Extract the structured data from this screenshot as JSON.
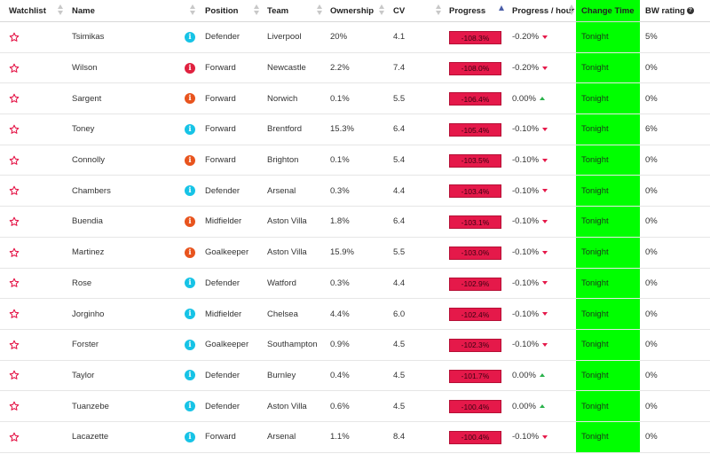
{
  "headers": {
    "watchlist": "Watchlist",
    "name": "Name",
    "position": "Position",
    "team": "Team",
    "ownership": "Ownership",
    "cv": "CV",
    "progress": "Progress",
    "progress_hour": "Progress / hour",
    "change_time": "Change Time",
    "bw_rating": "BW rating"
  },
  "colors": {
    "progress_bg": "#e5194a",
    "change_time_bg": "#00ff00",
    "info_cyan": "#16c3e6",
    "info_orange": "#e8541e",
    "info_red": "#e0213f",
    "star": "#e5194a"
  },
  "rows": [
    {
      "name": "Tsimikas",
      "info_color": "cyan",
      "position": "Defender",
      "team": "Liverpool",
      "ownership": "20%",
      "cv": "4.1",
      "progress": "-108.3%",
      "progress_hour": "-0.20%",
      "trend": "down",
      "change_time": "Tonight",
      "bw_rating": "5%"
    },
    {
      "name": "Wilson",
      "info_color": "red",
      "position": "Forward",
      "team": "Newcastle",
      "ownership": "2.2%",
      "cv": "7.4",
      "progress": "-108.0%",
      "progress_hour": "-0.20%",
      "trend": "down",
      "change_time": "Tonight",
      "bw_rating": "0%"
    },
    {
      "name": "Sargent",
      "info_color": "orange",
      "position": "Forward",
      "team": "Norwich",
      "ownership": "0.1%",
      "cv": "5.5",
      "progress": "-106.4%",
      "progress_hour": "0.00%",
      "trend": "up",
      "change_time": "Tonight",
      "bw_rating": "0%"
    },
    {
      "name": "Toney",
      "info_color": "cyan",
      "position": "Forward",
      "team": "Brentford",
      "ownership": "15.3%",
      "cv": "6.4",
      "progress": "-105.4%",
      "progress_hour": "-0.10%",
      "trend": "down",
      "change_time": "Tonight",
      "bw_rating": "6%"
    },
    {
      "name": "Connolly",
      "info_color": "orange",
      "position": "Forward",
      "team": "Brighton",
      "ownership": "0.1%",
      "cv": "5.4",
      "progress": "-103.5%",
      "progress_hour": "-0.10%",
      "trend": "down",
      "change_time": "Tonight",
      "bw_rating": "0%"
    },
    {
      "name": "Chambers",
      "info_color": "cyan",
      "position": "Defender",
      "team": "Arsenal",
      "ownership": "0.3%",
      "cv": "4.4",
      "progress": "-103.4%",
      "progress_hour": "-0.10%",
      "trend": "down",
      "change_time": "Tonight",
      "bw_rating": "0%"
    },
    {
      "name": "Buendia",
      "info_color": "orange",
      "position": "Midfielder",
      "team": "Aston Villa",
      "ownership": "1.8%",
      "cv": "6.4",
      "progress": "-103.1%",
      "progress_hour": "-0.10%",
      "trend": "down",
      "change_time": "Tonight",
      "bw_rating": "0%"
    },
    {
      "name": "Martinez",
      "info_color": "orange",
      "position": "Goalkeeper",
      "team": "Aston Villa",
      "ownership": "15.9%",
      "cv": "5.5",
      "progress": "-103.0%",
      "progress_hour": "-0.10%",
      "trend": "down",
      "change_time": "Tonight",
      "bw_rating": "0%"
    },
    {
      "name": "Rose",
      "info_color": "cyan",
      "position": "Defender",
      "team": "Watford",
      "ownership": "0.3%",
      "cv": "4.4",
      "progress": "-102.9%",
      "progress_hour": "-0.10%",
      "trend": "down",
      "change_time": "Tonight",
      "bw_rating": "0%"
    },
    {
      "name": "Jorginho",
      "info_color": "cyan",
      "position": "Midfielder",
      "team": "Chelsea",
      "ownership": "4.4%",
      "cv": "6.0",
      "progress": "-102.4%",
      "progress_hour": "-0.10%",
      "trend": "down",
      "change_time": "Tonight",
      "bw_rating": "0%"
    },
    {
      "name": "Forster",
      "info_color": "cyan",
      "position": "Goalkeeper",
      "team": "Southampton",
      "ownership": "0.9%",
      "cv": "4.5",
      "progress": "-102.3%",
      "progress_hour": "-0.10%",
      "trend": "down",
      "change_time": "Tonight",
      "bw_rating": "0%"
    },
    {
      "name": "Taylor",
      "info_color": "cyan",
      "position": "Defender",
      "team": "Burnley",
      "ownership": "0.4%",
      "cv": "4.5",
      "progress": "-101.7%",
      "progress_hour": "0.00%",
      "trend": "up",
      "change_time": "Tonight",
      "bw_rating": "0%"
    },
    {
      "name": "Tuanzebe",
      "info_color": "cyan",
      "position": "Defender",
      "team": "Aston Villa",
      "ownership": "0.6%",
      "cv": "4.5",
      "progress": "-100.4%",
      "progress_hour": "0.00%",
      "trend": "up",
      "change_time": "Tonight",
      "bw_rating": "0%"
    },
    {
      "name": "Lacazette",
      "info_color": "cyan",
      "position": "Forward",
      "team": "Arsenal",
      "ownership": "1.1%",
      "cv": "8.4",
      "progress": "-100.4%",
      "progress_hour": "-0.10%",
      "trend": "down",
      "change_time": "Tonight",
      "bw_rating": "0%"
    }
  ]
}
